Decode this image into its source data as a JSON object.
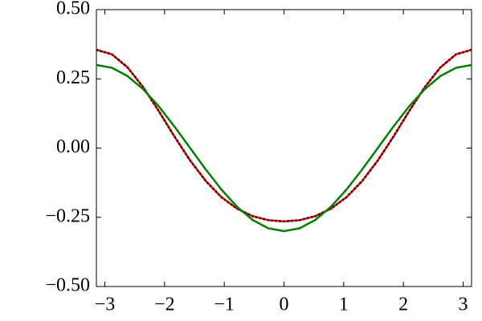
{
  "chart_data": {
    "type": "line",
    "x": [
      -3.142,
      -2.88,
      -2.618,
      -2.356,
      -2.094,
      -1.833,
      -1.571,
      -1.309,
      -1.047,
      -0.785,
      -0.524,
      -0.262,
      0,
      0.262,
      0.524,
      0.785,
      1.047,
      1.309,
      1.571,
      1.833,
      2.094,
      2.356,
      2.618,
      2.88,
      3.142
    ],
    "series": [
      {
        "color": "#ff0000",
        "linestyle": "solid",
        "values": [
          0.355,
          0.3384,
          0.291,
          0.2192,
          0.1325,
          0.0412,
          -0.045,
          -0.1192,
          -0.1775,
          -0.219,
          -0.246,
          -0.2604,
          -0.265,
          -0.2604,
          -0.246,
          -0.219,
          -0.1775,
          -0.1192,
          -0.045,
          0.0412,
          0.1325,
          0.2192,
          0.291,
          0.3384,
          0.355
        ]
      },
      {
        "color": "#000000",
        "linestyle": "dotted",
        "values": [
          0.355,
          0.3384,
          0.291,
          0.2192,
          0.1325,
          0.0412,
          -0.045,
          -0.1192,
          -0.1775,
          -0.219,
          -0.246,
          -0.2604,
          -0.265,
          -0.2604,
          -0.246,
          -0.219,
          -0.1775,
          -0.1192,
          -0.045,
          0.0412,
          0.1325,
          0.2192,
          0.291,
          0.3384,
          0.355
        ]
      },
      {
        "color": "#008000",
        "linestyle": "solid",
        "values": [
          0.3,
          0.2898,
          0.2598,
          0.2121,
          0.15,
          0.0776,
          0,
          -0.0776,
          -0.15,
          -0.2121,
          -0.2598,
          -0.2898,
          -0.3,
          -0.2898,
          -0.2598,
          -0.2121,
          -0.15,
          -0.0776,
          0,
          0.0776,
          0.15,
          0.2121,
          0.2598,
          0.2898,
          0.3
        ]
      }
    ],
    "xlim": [
      -3.14159,
      3.14159
    ],
    "xticks": [
      {
        "value": -3,
        "label": "−3"
      },
      {
        "value": -2,
        "label": "−2"
      },
      {
        "value": -1,
        "label": "−1"
      },
      0,
      1,
      2,
      3
    ],
    "ylim": [
      -0.5,
      0.5
    ],
    "yticks": [
      {
        "value": -0.5,
        "label": "−0.50"
      },
      {
        "value": -0.25,
        "label": "−0.25"
      },
      {
        "value": 0,
        "label": "0.00"
      },
      {
        "value": 0.25,
        "label": "0.25"
      },
      {
        "value": 0.5,
        "label": "0.50"
      }
    ],
    "grid": false
  }
}
